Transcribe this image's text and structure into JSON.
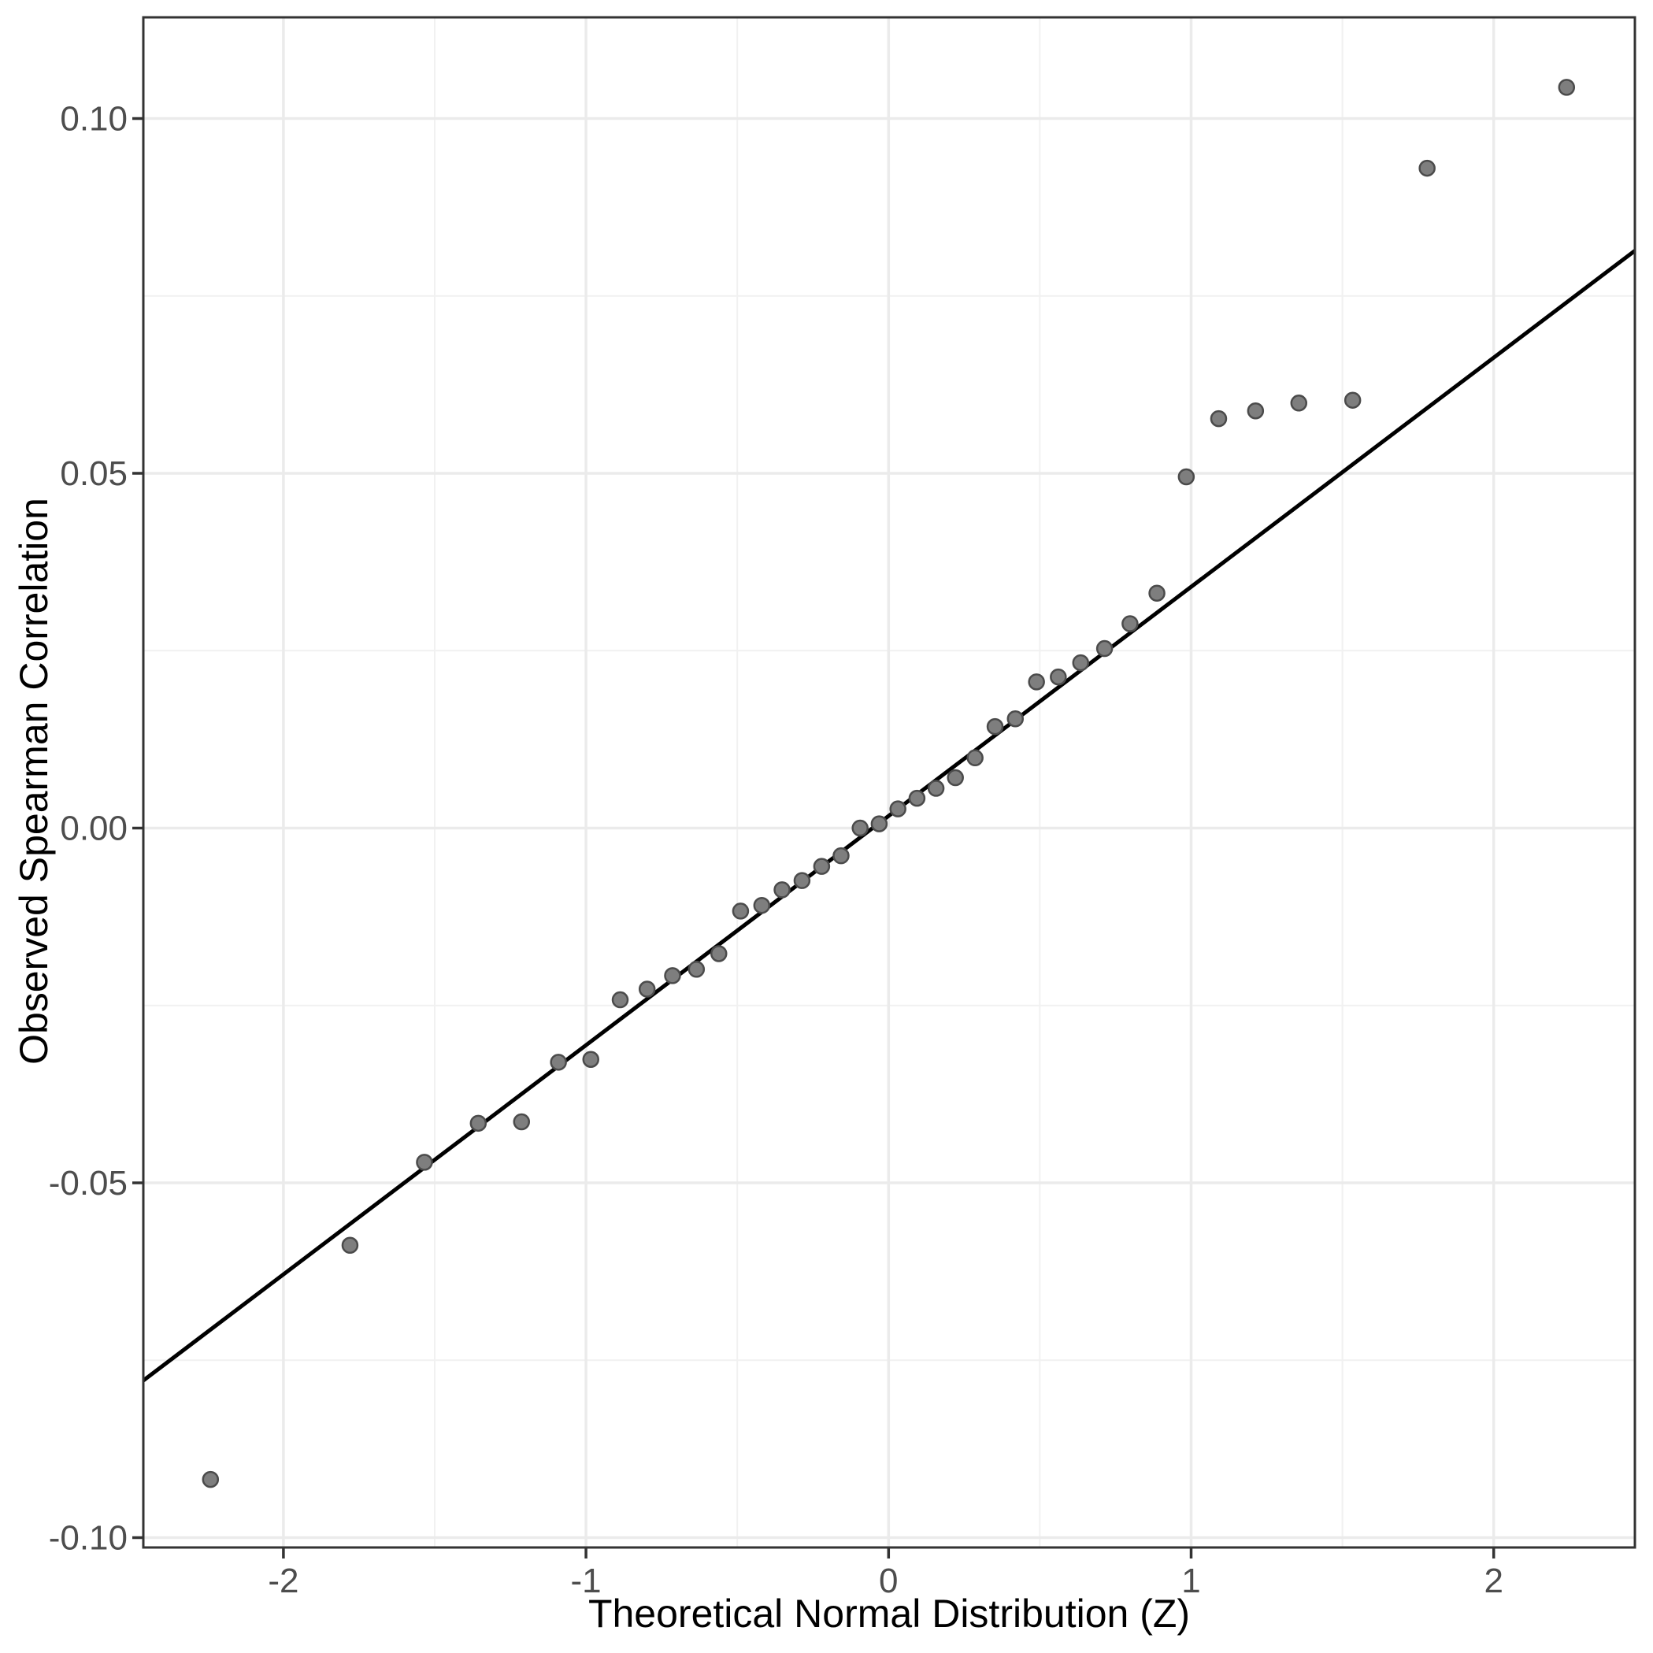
{
  "chart_data": {
    "type": "scatter",
    "title": "",
    "xlabel": "Theoretical Normal Distribution (Z)",
    "ylabel": "Observed Spearman Correlation",
    "x_tick_labels": [
      "-2",
      "-1",
      "0",
      "1",
      "2"
    ],
    "x_tick_values": [
      -2,
      -1,
      0,
      1,
      2
    ],
    "x_minor_values": [
      -1.5,
      -0.5,
      0.5,
      1.5
    ],
    "y_tick_labels": [
      "0.10",
      "0.05",
      "0.00",
      "-0.05",
      "-0.10"
    ],
    "y_tick_values": [
      0.1,
      0.05,
      0.0,
      -0.05,
      -0.1
    ],
    "y_minor_values": [
      0.075,
      0.025,
      -0.025,
      -0.075
    ],
    "xlim": [
      -2.462,
      2.466
    ],
    "ylim": [
      -0.1014,
      0.1145
    ],
    "grid": "major-and-minor",
    "legend_position": "none",
    "series": [
      {
        "name": "sample-quantiles",
        "points": [
          [
            -2.241,
            -0.0918
          ],
          [
            -1.78,
            -0.0588
          ],
          [
            -1.534,
            -0.0471
          ],
          [
            -1.356,
            -0.0416
          ],
          [
            -1.213,
            -0.0414
          ],
          [
            -1.091,
            -0.033
          ],
          [
            -0.984,
            -0.0326
          ],
          [
            -0.887,
            -0.0242
          ],
          [
            -0.798,
            -0.0227
          ],
          [
            -0.714,
            -0.0208
          ],
          [
            -0.635,
            -0.0199
          ],
          [
            -0.561,
            -0.0177
          ],
          [
            -0.489,
            -0.0117
          ],
          [
            -0.419,
            -0.0109
          ],
          [
            -0.352,
            -0.0087
          ],
          [
            -0.286,
            -0.0074
          ],
          [
            -0.221,
            -0.0054
          ],
          [
            -0.157,
            -0.0039
          ],
          [
            -0.094,
            0.0
          ],
          [
            -0.031,
            0.0006
          ],
          [
            0.031,
            0.0027
          ],
          [
            0.094,
            0.0042
          ],
          [
            0.157,
            0.0056
          ],
          [
            0.221,
            0.0071
          ],
          [
            0.286,
            0.0099
          ],
          [
            0.352,
            0.0143
          ],
          [
            0.419,
            0.0154
          ],
          [
            0.489,
            0.0206
          ],
          [
            0.561,
            0.0213
          ],
          [
            0.635,
            0.0233
          ],
          [
            0.714,
            0.0253
          ],
          [
            0.798,
            0.0288
          ],
          [
            0.887,
            0.0331
          ],
          [
            0.984,
            0.0495
          ],
          [
            1.091,
            0.0577
          ],
          [
            1.213,
            0.0588
          ],
          [
            1.356,
            0.0599
          ],
          [
            1.534,
            0.0603
          ],
          [
            1.78,
            0.093
          ],
          [
            2.241,
            0.1044
          ]
        ]
      }
    ],
    "qq_line": {
      "intercept": 0.0017,
      "slope": 0.0323
    },
    "colors": {
      "point_fill": "#7e7e7e",
      "point_stroke": "#4b4b4b",
      "reference_line": "#000000",
      "grid_major": "#ebebeb",
      "grid_minor": "#f1f1f1",
      "panel_border": "#333333",
      "tick_mark": "#333333",
      "tick_label": "#4d4d4d",
      "axis_title": "#000000",
      "panel_background": "#ffffff"
    }
  }
}
